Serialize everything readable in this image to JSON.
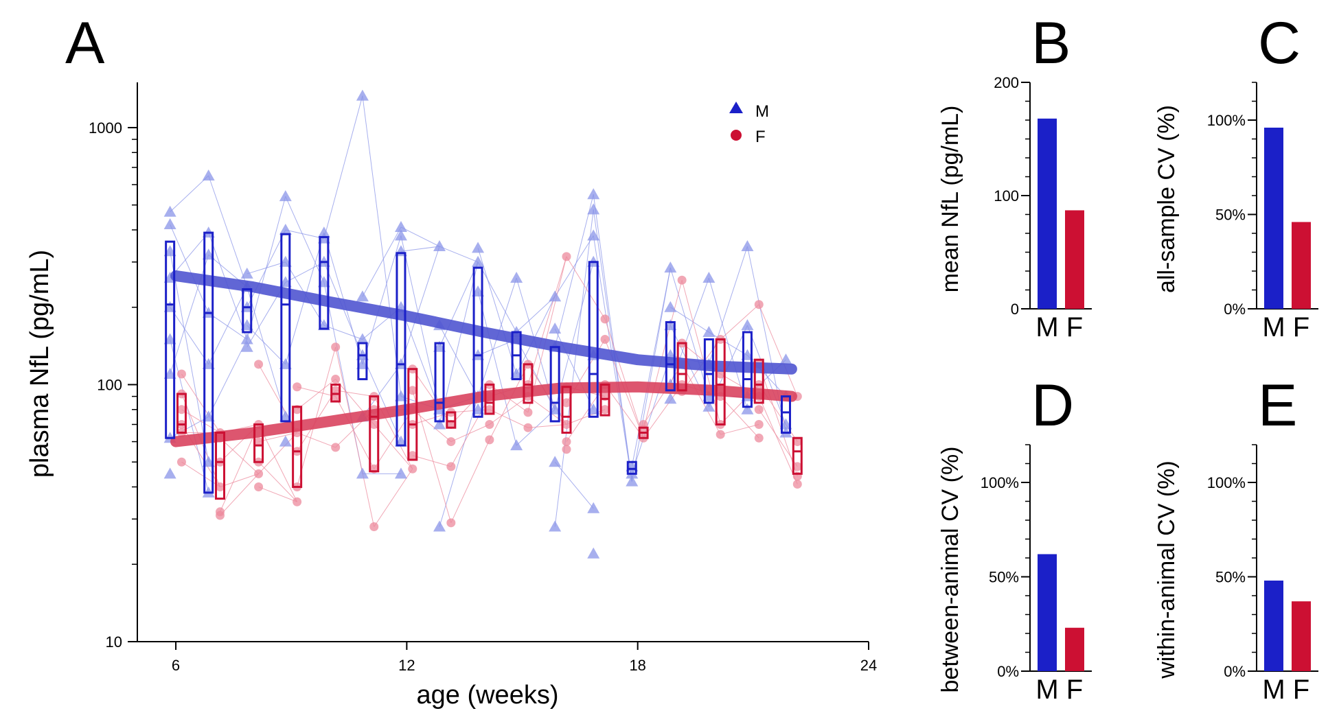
{
  "colors": {
    "male": "#1b20c8",
    "female": "#cc1033",
    "male_light": "#8a94e8",
    "female_light": "#ec8a9c",
    "male_trend": "#5055d0",
    "female_trend": "#d9445f"
  },
  "legend": [
    {
      "label": "M",
      "icon": "triangle-marker",
      "color": "#1b20c8"
    },
    {
      "label": "F",
      "icon": "circle-marker",
      "color": "#cc1033"
    }
  ],
  "chart_data": [
    {
      "panel": "A",
      "type": "scatter",
      "xlabel": "age (weeks)",
      "ylabel": "plasma NfL (pg/mL)",
      "xlim": [
        5,
        24
      ],
      "ylim": [
        10,
        1500
      ],
      "yscale": "log",
      "xticks": [
        "6",
        "12",
        "18",
        "24"
      ],
      "yticks": [
        "10",
        "100",
        "1000"
      ],
      "legend_position": "top-right",
      "series": [
        {
          "name": "M",
          "marker": "triangle",
          "points": [
            [
              6,
              470
            ],
            [
              6,
              420
            ],
            [
              6,
              330
            ],
            [
              6,
              260
            ],
            [
              6,
              200
            ],
            [
              6,
              150
            ],
            [
              6,
              110
            ],
            [
              6,
              62
            ],
            [
              6,
              45
            ],
            [
              7,
              650
            ],
            [
              7,
              390
            ],
            [
              7,
              320
            ],
            [
              7,
              190
            ],
            [
              7,
              120
            ],
            [
              7,
              75
            ],
            [
              7,
              50
            ],
            [
              7,
              38
            ],
            [
              8,
              270
            ],
            [
              8,
              240
            ],
            [
              8,
              200
            ],
            [
              8,
              170
            ],
            [
              8,
              150
            ],
            [
              8,
              140
            ],
            [
              9,
              540
            ],
            [
              9,
              400
            ],
            [
              9,
              300
            ],
            [
              9,
              250
            ],
            [
              9,
              120
            ],
            [
              9,
              75
            ],
            [
              9,
              60
            ],
            [
              10,
              390
            ],
            [
              10,
              370
            ],
            [
              10,
              300
            ],
            [
              10,
              250
            ],
            [
              10,
              170
            ],
            [
              11,
              1330
            ],
            [
              11,
              220
            ],
            [
              11,
              150
            ],
            [
              11,
              130
            ],
            [
              11,
              120
            ],
            [
              11,
              75
            ],
            [
              11,
              45
            ],
            [
              12,
              410
            ],
            [
              12,
              380
            ],
            [
              12,
              330
            ],
            [
              12,
              200
            ],
            [
              12,
              120
            ],
            [
              12,
              90
            ],
            [
              12,
              60
            ],
            [
              12,
              45
            ],
            [
              13,
              345
            ],
            [
              13,
              170
            ],
            [
              13,
              140
            ],
            [
              13,
              80
            ],
            [
              13,
              70
            ],
            [
              13,
              28
            ],
            [
              14,
              340
            ],
            [
              14,
              300
            ],
            [
              14,
              230
            ],
            [
              14,
              130
            ],
            [
              14,
              90
            ],
            [
              14,
              80
            ],
            [
              15,
              260
            ],
            [
              15,
              160
            ],
            [
              15,
              150
            ],
            [
              15,
              110
            ],
            [
              15,
              58
            ],
            [
              16,
              220
            ],
            [
              16,
              165
            ],
            [
              16,
              140
            ],
            [
              16,
              80
            ],
            [
              16,
              50
            ],
            [
              16,
              28
            ],
            [
              17,
              550
            ],
            [
              17,
              480
            ],
            [
              17,
              380
            ],
            [
              17,
              300
            ],
            [
              17,
              130
            ],
            [
              17,
              80
            ],
            [
              17,
              33
            ],
            [
              17,
              22
            ],
            [
              18,
              48
            ],
            [
              18,
              45
            ],
            [
              18,
              42
            ],
            [
              19,
              285
            ],
            [
              19,
              200
            ],
            [
              19,
              170
            ],
            [
              19,
              130
            ],
            [
              19,
              100
            ],
            [
              19,
              88
            ],
            [
              20,
              260
            ],
            [
              20,
              160
            ],
            [
              20,
              120
            ],
            [
              20,
              90
            ],
            [
              20,
              82
            ],
            [
              21,
              345
            ],
            [
              21,
              170
            ],
            [
              21,
              130
            ],
            [
              21,
              90
            ],
            [
              21,
              80
            ],
            [
              22,
              125
            ],
            [
              22,
              90
            ],
            [
              22,
              70
            ],
            [
              22,
              65
            ]
          ]
        },
        {
          "name": "F",
          "marker": "circle",
          "points": [
            [
              6,
              110
            ],
            [
              6,
              92
            ],
            [
              6,
              80
            ],
            [
              6,
              70
            ],
            [
              6,
              65
            ],
            [
              6,
              50
            ],
            [
              7,
              65
            ],
            [
              7,
              62
            ],
            [
              7,
              50
            ],
            [
              7,
              40
            ],
            [
              7,
              32
            ],
            [
              7,
              31
            ],
            [
              8,
              120
            ],
            [
              8,
              70
            ],
            [
              8,
              60
            ],
            [
              8,
              50
            ],
            [
              8,
              45
            ],
            [
              8,
              40
            ],
            [
              9,
              98
            ],
            [
              9,
              80
            ],
            [
              9,
              65
            ],
            [
              9,
              55
            ],
            [
              9,
              40
            ],
            [
              9,
              35
            ],
            [
              10,
              140
            ],
            [
              10,
              105
            ],
            [
              10,
              95
            ],
            [
              10,
              90
            ],
            [
              10,
              57
            ],
            [
              11,
              90
            ],
            [
              11,
              80
            ],
            [
              11,
              70
            ],
            [
              11,
              47
            ],
            [
              11,
              28
            ],
            [
              12,
              115
            ],
            [
              12,
              95
            ],
            [
              12,
              80
            ],
            [
              12,
              70
            ],
            [
              12,
              53
            ],
            [
              12,
              47
            ],
            [
              13,
              78
            ],
            [
              13,
              70
            ],
            [
              13,
              60
            ],
            [
              13,
              48
            ],
            [
              13,
              29
            ],
            [
              14,
              100
            ],
            [
              14,
              90
            ],
            [
              14,
              80
            ],
            [
              14,
              70
            ],
            [
              14,
              61
            ],
            [
              15,
              120
            ],
            [
              15,
              100
            ],
            [
              15,
              90
            ],
            [
              15,
              78
            ],
            [
              15,
              68
            ],
            [
              16,
              315
            ],
            [
              16,
              98
            ],
            [
              16,
              85
            ],
            [
              16,
              70
            ],
            [
              16,
              60
            ],
            [
              16,
              56
            ],
            [
              17,
              180
            ],
            [
              17,
              150
            ],
            [
              17,
              100
            ],
            [
              17,
              90
            ],
            [
              17,
              80
            ],
            [
              18,
              70
            ],
            [
              18,
              67
            ],
            [
              18,
              62
            ],
            [
              19,
              255
            ],
            [
              19,
              145
            ],
            [
              19,
              120
            ],
            [
              19,
              100
            ],
            [
              19,
              94
            ],
            [
              20,
              150
            ],
            [
              20,
              110
            ],
            [
              20,
              90
            ],
            [
              20,
              70
            ],
            [
              20,
              64
            ],
            [
              21,
              205
            ],
            [
              21,
              120
            ],
            [
              21,
              100
            ],
            [
              21,
              90
            ],
            [
              21,
              80
            ],
            [
              21,
              70
            ],
            [
              21,
              62
            ],
            [
              22,
              90
            ],
            [
              22,
              60
            ],
            [
              22,
              48
            ],
            [
              22,
              44
            ],
            [
              22,
              41
            ]
          ]
        }
      ],
      "boxes": {
        "M": [
          [
            6,
            62,
            205,
            360
          ],
          [
            7,
            38,
            190,
            390
          ],
          [
            8,
            160,
            200,
            235
          ],
          [
            9,
            72,
            205,
            385
          ],
          [
            10,
            165,
            300,
            375
          ],
          [
            11,
            105,
            130,
            145
          ],
          [
            12,
            58,
            120,
            325
          ],
          [
            13,
            72,
            85,
            145
          ],
          [
            14,
            75,
            130,
            285
          ],
          [
            15,
            105,
            130,
            160
          ],
          [
            16,
            72,
            85,
            140
          ],
          [
            17,
            75,
            110,
            300
          ],
          [
            18,
            45,
            47,
            50
          ],
          [
            19,
            95,
            120,
            175
          ],
          [
            20,
            85,
            110,
            150
          ],
          [
            21,
            82,
            105,
            160
          ],
          [
            22,
            65,
            78,
            90
          ]
        ],
        "F": [
          [
            6,
            65,
            70,
            92
          ],
          [
            7,
            36,
            50,
            65
          ],
          [
            8,
            50,
            58,
            70
          ],
          [
            9,
            40,
            55,
            82
          ],
          [
            10,
            86,
            92,
            100
          ],
          [
            11,
            46,
            75,
            90
          ],
          [
            12,
            51,
            70,
            115
          ],
          [
            13,
            68,
            72,
            78
          ],
          [
            14,
            77,
            85,
            100
          ],
          [
            15,
            85,
            100,
            120
          ],
          [
            16,
            65,
            75,
            98
          ],
          [
            17,
            76,
            88,
            100
          ],
          [
            18,
            62,
            65,
            68
          ],
          [
            19,
            95,
            110,
            145
          ],
          [
            20,
            70,
            100,
            150
          ],
          [
            21,
            85,
            100,
            125
          ],
          [
            22,
            45,
            55,
            62
          ]
        ]
      },
      "trend": {
        "M": {
          "x": [
            6,
            8,
            10,
            12,
            14,
            16,
            18,
            20,
            22
          ],
          "y": [
            265,
            240,
            210,
            185,
            160,
            140,
            125,
            118,
            115
          ]
        },
        "F": {
          "x": [
            6,
            8,
            10,
            12,
            14,
            16,
            18,
            20,
            22
          ],
          "y": [
            60,
            65,
            72,
            80,
            90,
            97,
            98,
            95,
            90
          ]
        }
      }
    },
    {
      "panel": "B",
      "type": "bar",
      "categories": [
        "M",
        "F"
      ],
      "values": [
        168,
        87
      ],
      "ylabel": "mean NfL (pg/mL)",
      "ylim": [
        0,
        200
      ],
      "yticks": [
        "0",
        "100",
        "200"
      ]
    },
    {
      "panel": "C",
      "type": "bar",
      "categories": [
        "M",
        "F"
      ],
      "values": [
        96,
        46
      ],
      "ylabel": "all-sample CV (%)",
      "ylim": [
        0,
        120
      ],
      "yticks": [
        "0%",
        "50%",
        "100%"
      ]
    },
    {
      "panel": "D",
      "type": "bar",
      "categories": [
        "M",
        "F"
      ],
      "values": [
        62,
        23
      ],
      "ylabel": "between-animal CV (%)",
      "ylim": [
        0,
        120
      ],
      "yticks": [
        "0%",
        "50%",
        "100%"
      ]
    },
    {
      "panel": "E",
      "type": "bar",
      "categories": [
        "M",
        "F"
      ],
      "values": [
        48,
        37
      ],
      "ylabel": "within-animal CV (%)",
      "ylim": [
        0,
        120
      ],
      "yticks": [
        "0%",
        "50%",
        "100%"
      ]
    }
  ]
}
